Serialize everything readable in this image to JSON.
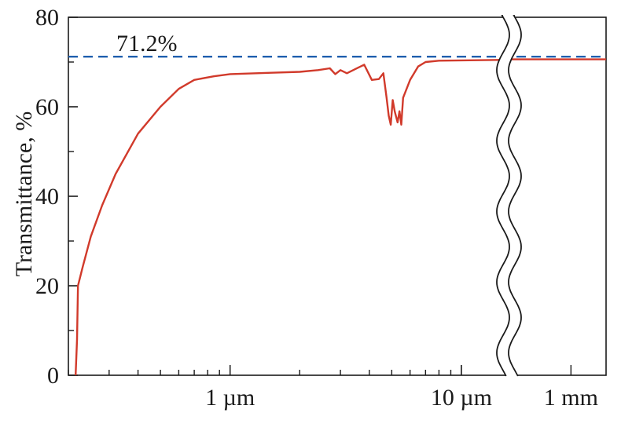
{
  "chart_data": {
    "type": "line",
    "title": "",
    "xlabel": "",
    "ylabel": "Transmittance, %",
    "x_scale": "log",
    "x_unit": "µm",
    "xlim": [
      0.2,
      1500
    ],
    "x_axis_break": {
      "from": 16,
      "to": 500
    },
    "ylim": [
      0,
      80
    ],
    "y_ticks": [
      {
        "value": 0,
        "label": "0"
      },
      {
        "value": 20,
        "label": "20"
      },
      {
        "value": 40,
        "label": "40"
      },
      {
        "value": 60,
        "label": "60"
      },
      {
        "value": 80,
        "label": "80"
      }
    ],
    "x_ticks": [
      {
        "value": 1,
        "label": "1 µm"
      },
      {
        "value": 10,
        "label": "10 µm"
      },
      {
        "value": 1000,
        "label": "1 mm"
      }
    ],
    "reference_line": {
      "value": 71.2,
      "label": "71.2%",
      "color": "#1f5fae",
      "style": "dashed"
    },
    "series": [
      {
        "color": "#d13a2b",
        "points": [
          [
            0.215,
            0
          ],
          [
            0.218,
            8
          ],
          [
            0.22,
            20
          ],
          [
            0.23,
            24
          ],
          [
            0.25,
            31
          ],
          [
            0.28,
            38
          ],
          [
            0.32,
            45
          ],
          [
            0.4,
            54
          ],
          [
            0.5,
            60
          ],
          [
            0.6,
            64
          ],
          [
            0.7,
            66
          ],
          [
            0.85,
            66.8
          ],
          [
            1.0,
            67.3
          ],
          [
            1.5,
            67.6
          ],
          [
            2.0,
            67.8
          ],
          [
            2.4,
            68.2
          ],
          [
            2.7,
            68.6
          ],
          [
            2.85,
            67.3
          ],
          [
            3.0,
            68.2
          ],
          [
            3.2,
            67.5
          ],
          [
            3.5,
            68.5
          ],
          [
            3.8,
            69.4
          ],
          [
            4.1,
            66.0
          ],
          [
            4.4,
            66.2
          ],
          [
            4.6,
            67.5
          ],
          [
            4.75,
            62
          ],
          [
            4.85,
            58
          ],
          [
            4.95,
            56
          ],
          [
            5.05,
            61.5
          ],
          [
            5.15,
            59
          ],
          [
            5.3,
            56.5
          ],
          [
            5.4,
            59
          ],
          [
            5.5,
            56
          ],
          [
            5.6,
            62
          ],
          [
            6.0,
            66
          ],
          [
            6.5,
            69
          ],
          [
            7.0,
            70
          ],
          [
            8.0,
            70.3
          ],
          [
            16,
            70.5
          ],
          [
            500,
            70.6
          ],
          [
            1500,
            70.6
          ]
        ]
      }
    ]
  }
}
